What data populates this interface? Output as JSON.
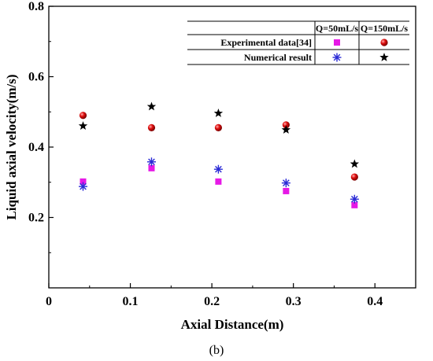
{
  "chart_data": {
    "type": "scatter",
    "caption": "(b)",
    "xlabel": "Axial Distance(m)",
    "ylabel": "Liquid axial velocity(m/s)",
    "xlim": [
      0,
      0.45
    ],
    "ylim": [
      0,
      0.8
    ],
    "xticks": [
      "0",
      "0.1",
      "0.2",
      "0.3",
      "0.4"
    ],
    "yticks": [
      "0.2",
      "0.4",
      "0.6",
      "0.8"
    ],
    "legend": {
      "placement": "top-right",
      "columns": [
        "Q=50mL/s",
        "Q=150mL/s"
      ],
      "rows": [
        "Experimental data[34]",
        "Numerical result"
      ]
    },
    "series": [
      {
        "name": "Experimental data[34] Q=50mL/s",
        "marker": "square",
        "color": "#e619e6",
        "x": [
          0.042,
          0.126,
          0.208,
          0.291,
          0.375
        ],
        "y": [
          0.302,
          0.34,
          0.302,
          0.275,
          0.235
        ]
      },
      {
        "name": "Numerical result Q=50mL/s",
        "marker": "asterisk",
        "color": "#2a2ad6",
        "x": [
          0.042,
          0.126,
          0.208,
          0.291,
          0.375
        ],
        "y": [
          0.288,
          0.358,
          0.337,
          0.298,
          0.252
        ]
      },
      {
        "name": "Experimental data[34] Q=150mL/s",
        "marker": "ball",
        "color": "#e01010",
        "x": [
          0.042,
          0.126,
          0.208,
          0.291,
          0.375
        ],
        "y": [
          0.49,
          0.455,
          0.455,
          0.463,
          0.315
        ]
      },
      {
        "name": "Numerical result Q=150mL/s",
        "marker": "star",
        "color": "#000000",
        "x": [
          0.042,
          0.126,
          0.208,
          0.291,
          0.375
        ],
        "y": [
          0.46,
          0.515,
          0.496,
          0.449,
          0.352
        ]
      }
    ]
  }
}
